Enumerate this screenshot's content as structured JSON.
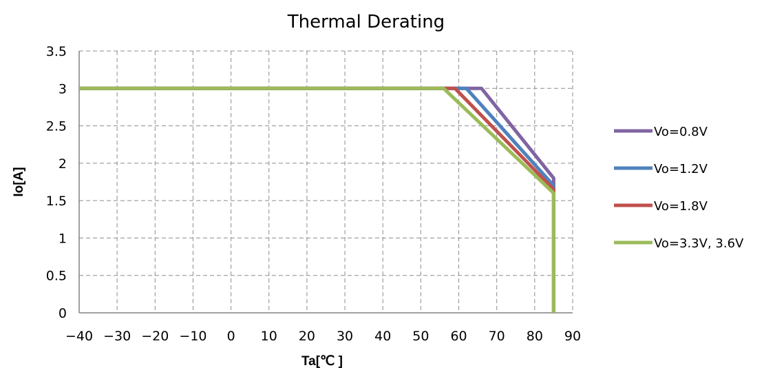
{
  "chart_data": {
    "type": "line",
    "title": "Thermal Derating",
    "xlabel": "Ta[℃ ]",
    "ylabel": "Io[A]",
    "xlim": [
      -40,
      90
    ],
    "ylim": [
      0,
      3.5
    ],
    "xticks": [
      -40,
      -30,
      -20,
      -10,
      0,
      10,
      20,
      30,
      40,
      50,
      60,
      70,
      80,
      90
    ],
    "yticks": [
      0,
      0.5,
      1,
      1.5,
      2,
      2.5,
      3,
      3.5
    ],
    "xtick_labels": [
      "−40",
      "−30",
      "−20",
      "−10",
      "0",
      "10",
      "20",
      "30",
      "40",
      "50",
      "60",
      "70",
      "80",
      "90"
    ],
    "ytick_labels": [
      "0",
      "0.5",
      "1",
      "1.5",
      "2",
      "2.5",
      "3",
      "3.5"
    ],
    "grid": true,
    "legend_position": "right",
    "series": [
      {
        "name": "Vo=0.8V",
        "color": "#8064a2",
        "x": [
          -40,
          66,
          85,
          85
        ],
        "y": [
          3,
          3,
          1.8,
          0
        ]
      },
      {
        "name": "Vo=1.2V",
        "color": "#4f81bd",
        "x": [
          -40,
          62,
          85,
          85
        ],
        "y": [
          3,
          3,
          1.7,
          0
        ]
      },
      {
        "name": "Vo=1.8V",
        "color": "#c0504d",
        "x": [
          -40,
          59,
          85,
          85
        ],
        "y": [
          3,
          3,
          1.65,
          0
        ]
      },
      {
        "name": "Vo=3.3V, 3.6V",
        "color": "#9bbb59",
        "x": [
          -40,
          56,
          85,
          85
        ],
        "y": [
          3,
          3,
          1.6,
          0
        ]
      }
    ]
  }
}
